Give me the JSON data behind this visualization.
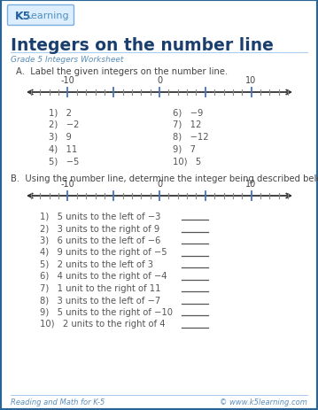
{
  "title": "Integers on the number line",
  "subtitle": "Grade 5 Integers Worksheet",
  "bg_color": "#ffffff",
  "border_color": "#2a6496",
  "title_color": "#1a3e6e",
  "subtitle_color": "#5b8db8",
  "text_color": "#444444",
  "body_text_color": "#555555",
  "section_A_instruction": "A.  Label the given integers on the number line.",
  "section_B_instruction": "B.  Using the number line, determine the integer being described below.",
  "section_A_items_left": [
    "1)   2",
    "2)   −2",
    "3)   9",
    "4)   11",
    "5)   −5"
  ],
  "section_A_items_right": [
    "6)   −9",
    "7)   12",
    "8)   −12",
    "9)   7",
    "10)   5"
  ],
  "section_B_items": [
    "1)   5 units to the left of −3",
    "2)   3 units to the right of 9",
    "3)   6 units to the left of −6",
    "4)   9 units to the right of −5",
    "5)   2 units to the left of 3",
    "6)   4 units to the right of −4",
    "7)   1 unit to the right of 11",
    "8)   3 units to the left of −7",
    "9)   5 units to the right of −10",
    "10)   2 units to the right of 4"
  ],
  "footer_left": "Reading and Math for K-5",
  "footer_right": "© www.k5learning.com",
  "number_line_color": "#333333",
  "tick_major_color": "#4472c4",
  "tick_minor_color": "#888888",
  "answer_line_color": "#555555"
}
